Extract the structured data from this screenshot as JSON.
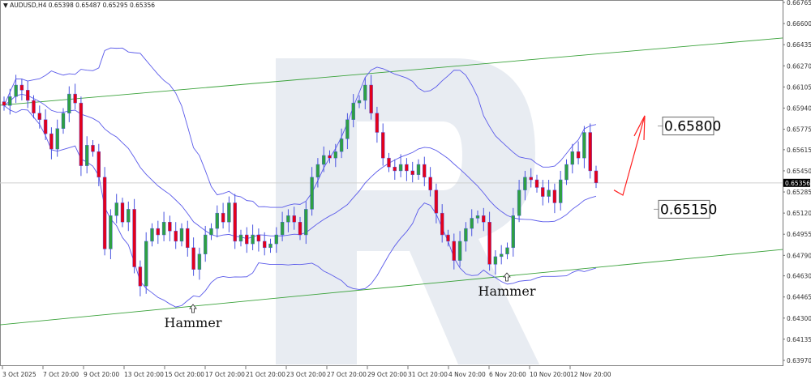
{
  "header": {
    "symbol": "AUDUSD,H4",
    "ohlc_text": "0.65398 0.65487 0.65295 0.65356"
  },
  "chart_data": {
    "type": "candlestick",
    "symbol": "AUDUSD",
    "timeframe": "H4",
    "ylim": [
      0.6397,
      0.66765
    ],
    "y_ticks": [
      "0.66765",
      "0.66600",
      "0.66435",
      "0.66270",
      "0.66105",
      "0.65940",
      "0.65775",
      "0.65615",
      "0.65450",
      "0.65285",
      "0.65120",
      "0.64955",
      "0.64790",
      "0.64630",
      "0.64465",
      "0.64300",
      "0.64135",
      "0.63970"
    ],
    "x_ticks": [
      "3 Oct 2025",
      "7 Oct 20:00",
      "9 Oct 20:00",
      "13 Oct 20:00",
      "15 Oct 20:00",
      "17 Oct 20:00",
      "21 Oct 20:00",
      "23 Oct 20:00",
      "27 Oct 20:00",
      "29 Oct 20:00",
      "31 Oct 20:00",
      "4 Nov 20:00",
      "6 Nov 20:00",
      "10 Nov 20:00",
      "12 Nov 20:00"
    ],
    "current_price": "0.65356",
    "close": [
      0.6596,
      0.6603,
      0.6612,
      0.6608,
      0.66,
      0.659,
      0.6585,
      0.6574,
      0.6562,
      0.6578,
      0.659,
      0.6605,
      0.6598,
      0.6549,
      0.6565,
      0.656,
      0.654,
      0.6484,
      0.651,
      0.652,
      0.6505,
      0.6515,
      0.647,
      0.6455,
      0.649,
      0.65,
      0.6495,
      0.6505,
      0.6498,
      0.649,
      0.65,
      0.6485,
      0.6468,
      0.648,
      0.6495,
      0.65,
      0.6512,
      0.6505,
      0.652,
      0.649,
      0.6495,
      0.6488,
      0.6495,
      0.649,
      0.6485,
      0.6488,
      0.6495,
      0.6505,
      0.651,
      0.6505,
      0.6495,
      0.6515,
      0.654,
      0.655,
      0.6557,
      0.6555,
      0.656,
      0.657,
      0.6585,
      0.6598,
      0.66,
      0.6612,
      0.659,
      0.6575,
      0.6555,
      0.6548,
      0.6545,
      0.655,
      0.6545,
      0.6542,
      0.655,
      0.654,
      0.653,
      0.6512,
      0.6495,
      0.649,
      0.6475,
      0.649,
      0.65,
      0.6508,
      0.651,
      0.6505,
      0.6472,
      0.6478,
      0.648,
      0.6485,
      0.651,
      0.653,
      0.654,
      0.6538,
      0.6532,
      0.6525,
      0.653,
      0.652,
      0.6538,
      0.655,
      0.656,
      0.6555,
      0.6575,
      0.6545,
      0.65356
    ],
    "bollinger": {
      "period": 20,
      "deviations": 2
    },
    "channel": {
      "upper": {
        "start_price": 0.65962,
        "end_price": 0.66487
      },
      "lower": {
        "start_price": 0.64248,
        "end_price": 0.64836
      }
    },
    "levels": [
      {
        "label": "0.65800",
        "price": 0.658
      },
      {
        "label": "0.65150",
        "price": 0.6515
      }
    ],
    "annotations": [
      {
        "text": "Hammer",
        "candle_index": 32
      },
      {
        "text": "Hammer",
        "candle_index": 84
      }
    ],
    "forecast_arrow": {
      "path_prices": [
        0.653,
        0.6526,
        0.6588
      ]
    },
    "colors": {
      "bull": "#2ea043",
      "bear": "#e3001b",
      "wick": "#4a55e0",
      "bands": "#5a5aea",
      "channel": "#3aa23a",
      "arrow": "#ff2020",
      "watermark": "#e6eaf1"
    }
  }
}
